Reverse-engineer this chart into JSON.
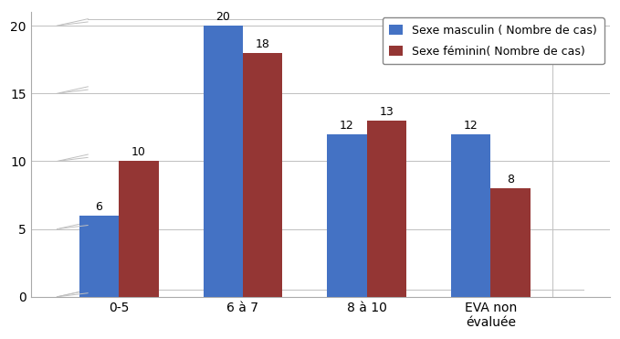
{
  "categories": [
    "0-5",
    "6 à 7",
    "8 à 10",
    "EVA non\névaluée"
  ],
  "masculin": [
    6,
    20,
    12,
    12
  ],
  "feminin": [
    10,
    18,
    13,
    8
  ],
  "color_masculin": "#4472C4",
  "color_feminin": "#943634",
  "legend_masculin": "Sexe masculin ( Nombre de cas)",
  "legend_feminin": "Sexe féminin( Nombre de cas)",
  "ylim": [
    0,
    21
  ],
  "yticks": [
    0,
    5,
    10,
    15,
    20
  ],
  "bar_width": 0.32,
  "tick_fontsize": 10,
  "legend_fontsize": 9,
  "value_fontsize": 9,
  "background_color": "#ffffff",
  "grid_color": "#c0c0c0"
}
